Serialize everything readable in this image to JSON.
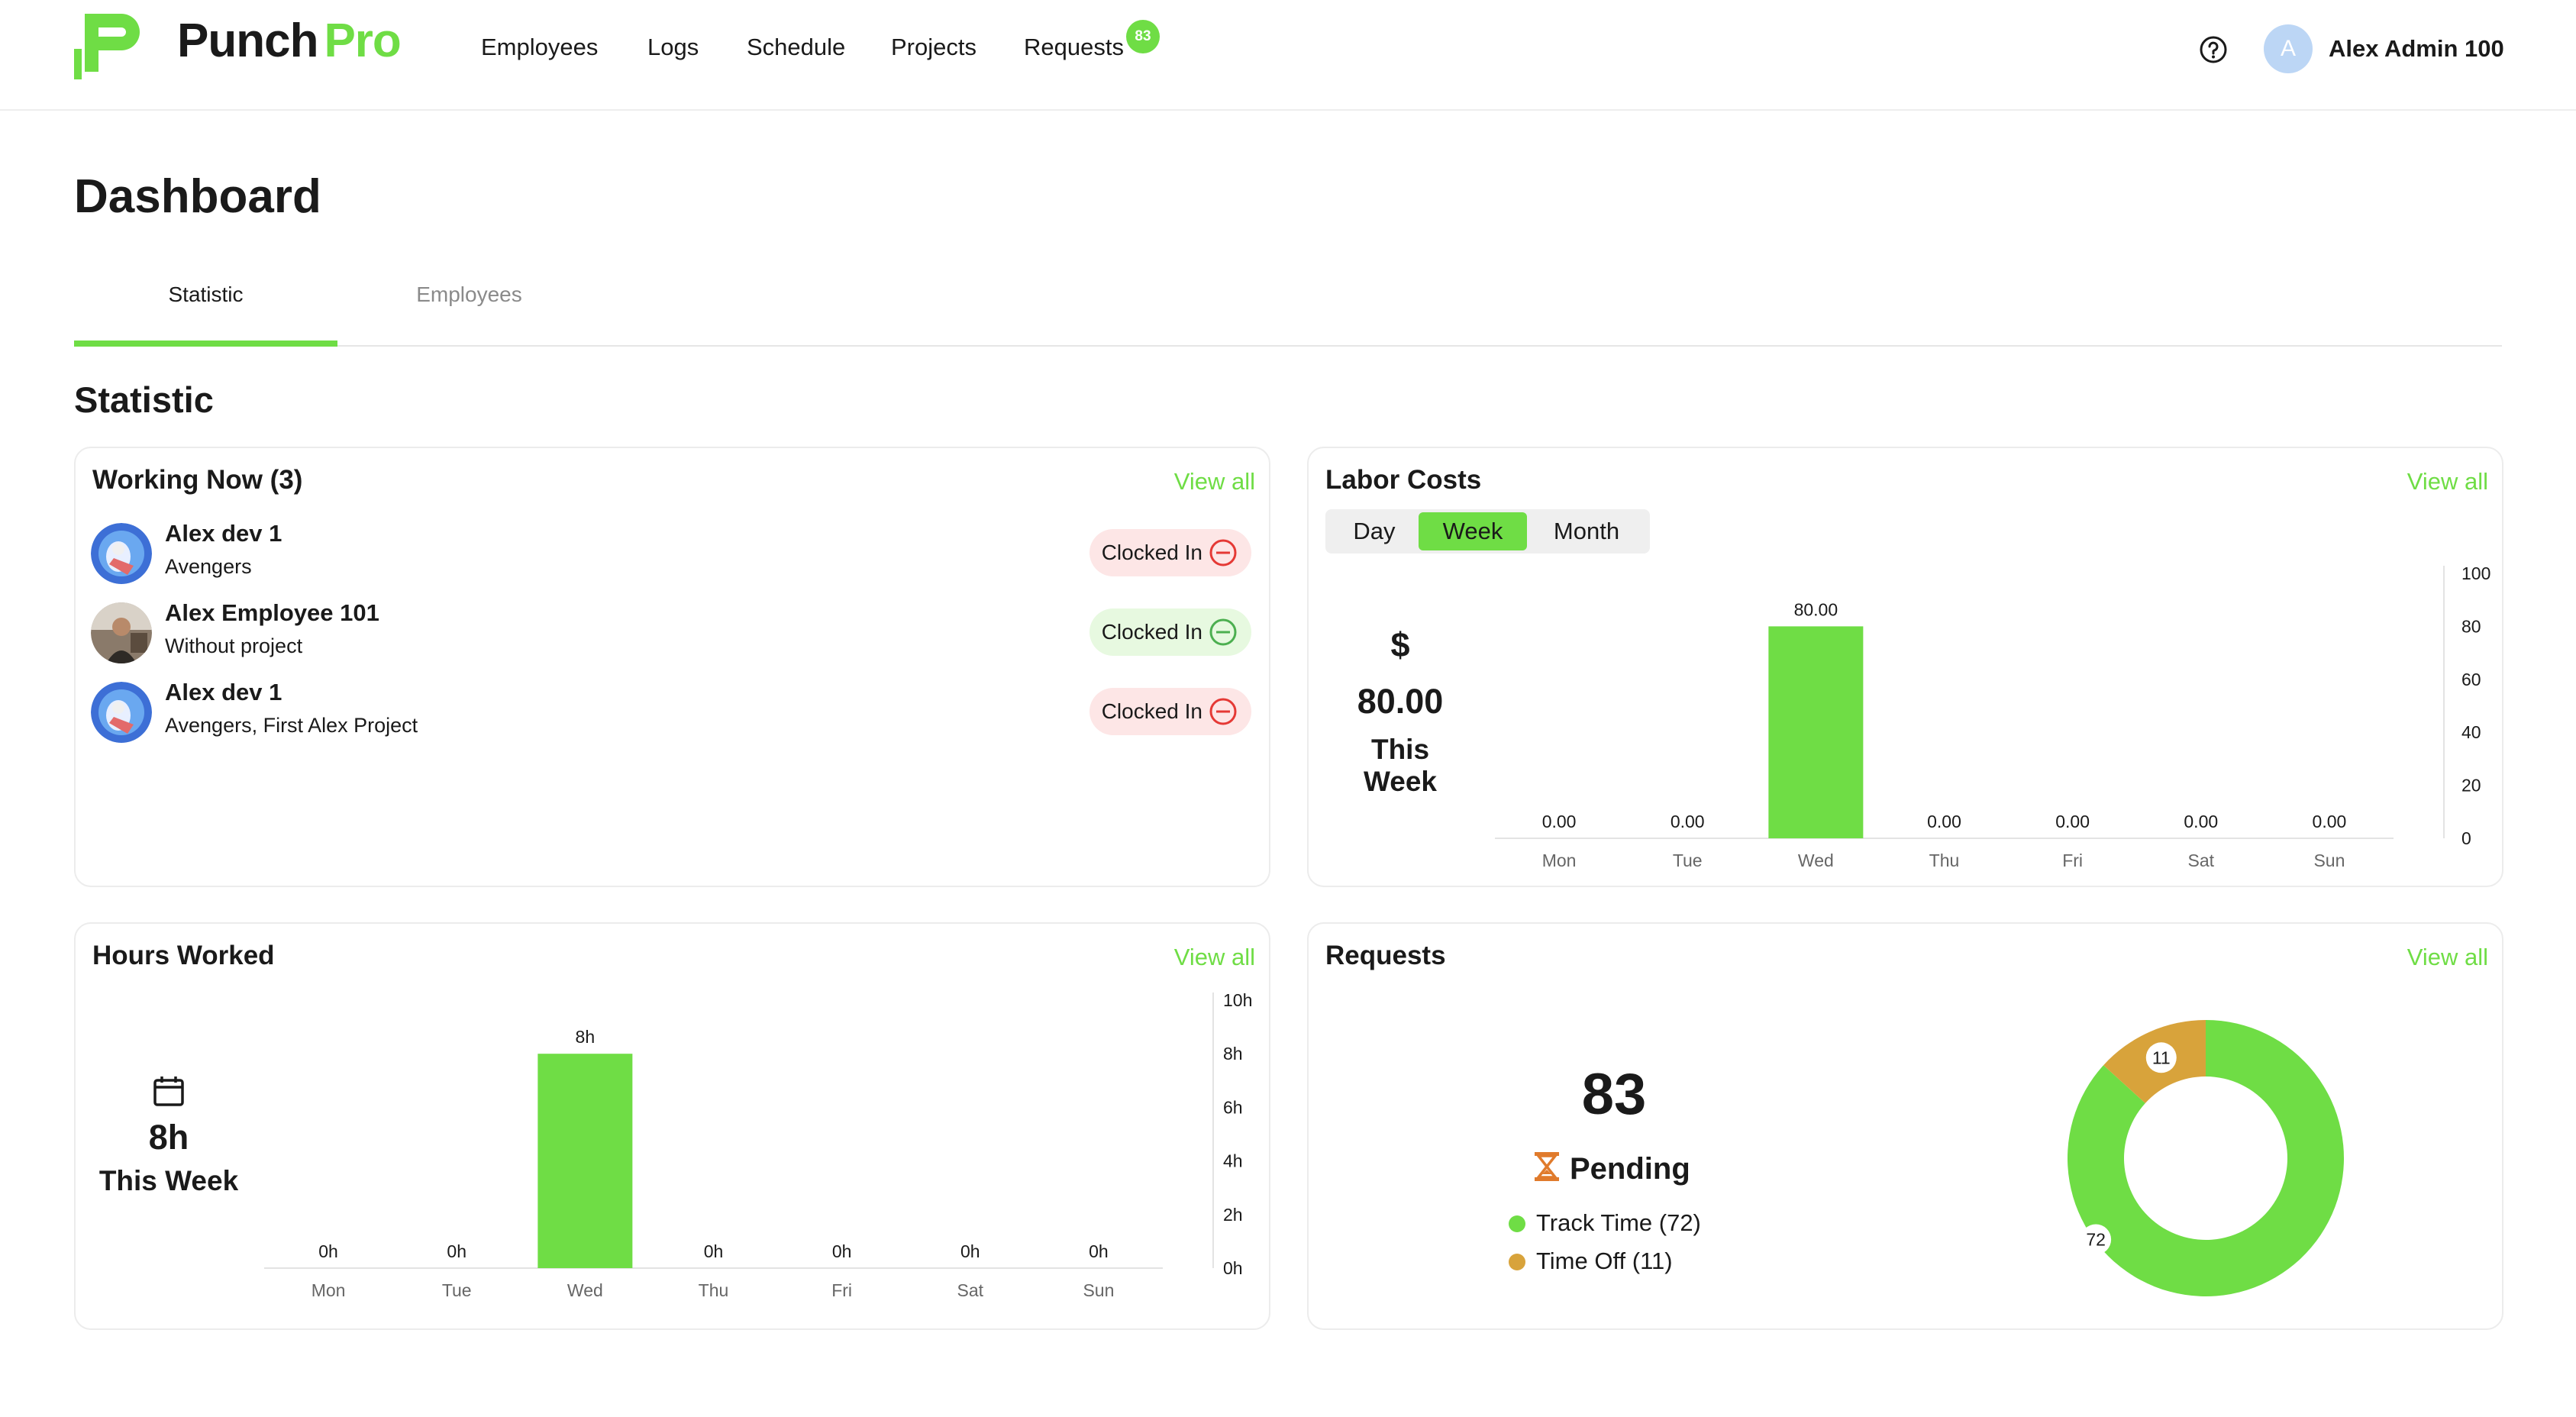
{
  "header": {
    "brand_part1": "Punch",
    "brand_part2": "Pro",
    "nav": [
      {
        "label": "Employees"
      },
      {
        "label": "Logs"
      },
      {
        "label": "Schedule"
      },
      {
        "label": "Projects"
      },
      {
        "label": "Requests"
      }
    ],
    "requests_badge": "83",
    "avatar_initial": "A",
    "user_name": "Alex Admin 100"
  },
  "page": {
    "title": "Dashboard",
    "tabs": [
      {
        "label": "Statistic"
      },
      {
        "label": "Employees"
      }
    ],
    "section_title": "Statistic"
  },
  "working_now": {
    "title": "Working Now (3)",
    "view_all": "View all",
    "rows": [
      {
        "name": "Alex dev 1",
        "project": "Avengers",
        "status": "Clocked In",
        "status_color": "#e53935"
      },
      {
        "name": "Alex Employee 101",
        "project": "Without project",
        "status": "Clocked In",
        "status_color": "#4caf50"
      },
      {
        "name": "Alex dev 1",
        "project": "Avengers, First Alex Project",
        "status": "Clocked In",
        "status_color": "#e53935"
      }
    ]
  },
  "labor_costs": {
    "title": "Labor Costs",
    "view_all": "View all",
    "periods": [
      "Day",
      "Week",
      "Month"
    ],
    "selected_period": "Week",
    "currency_symbol": "$",
    "total": "80.00",
    "total_label": "This Week"
  },
  "hours_worked": {
    "title": "Hours Worked",
    "view_all": "View all",
    "total": "8h",
    "total_label": "This Week"
  },
  "requests": {
    "title": "Requests",
    "view_all": "View all",
    "total": "83",
    "status_label": "Pending",
    "legend": [
      {
        "label": "Track Time (72)",
        "color": "#6fdd45"
      },
      {
        "label": "Time Off (11)",
        "color": "#d8a33b"
      }
    ]
  },
  "colors": {
    "accent": "#6fdd45",
    "secondary": "#d8a33b",
    "clocked_in_red_bg": "#fde6e6",
    "clocked_in_green_bg": "#e7f9e0"
  },
  "chart_data": [
    {
      "id": "labor",
      "type": "bar",
      "categories": [
        "Mon",
        "Tue",
        "Wed",
        "Thu",
        "Fri",
        "Sat",
        "Sun"
      ],
      "values": [
        0,
        0,
        80,
        0,
        0,
        0,
        0
      ],
      "value_labels": [
        "0.00",
        "0.00",
        "80.00",
        "0.00",
        "0.00",
        "0.00",
        "0.00"
      ],
      "y_ticks": [
        "0",
        "20",
        "40",
        "60",
        "80",
        "100"
      ],
      "ylim": [
        0,
        100
      ],
      "grid": false,
      "color": "#6fdd45"
    },
    {
      "id": "hours",
      "type": "bar",
      "categories": [
        "Mon",
        "Tue",
        "Wed",
        "Thu",
        "Fri",
        "Sat",
        "Sun"
      ],
      "values": [
        0,
        0,
        8,
        0,
        0,
        0,
        0
      ],
      "value_labels": [
        "0h",
        "0h",
        "8h",
        "0h",
        "0h",
        "0h",
        "0h"
      ],
      "y_ticks": [
        "0h",
        "2h",
        "4h",
        "6h",
        "8h",
        "10h"
      ],
      "ylim": [
        0,
        10
      ],
      "grid": false,
      "color": "#6fdd45"
    },
    {
      "id": "requests",
      "type": "pie",
      "categories": [
        "Track Time",
        "Time Off"
      ],
      "values": [
        72,
        11
      ],
      "colors": [
        "#6fdd45",
        "#d8a33b"
      ]
    }
  ]
}
